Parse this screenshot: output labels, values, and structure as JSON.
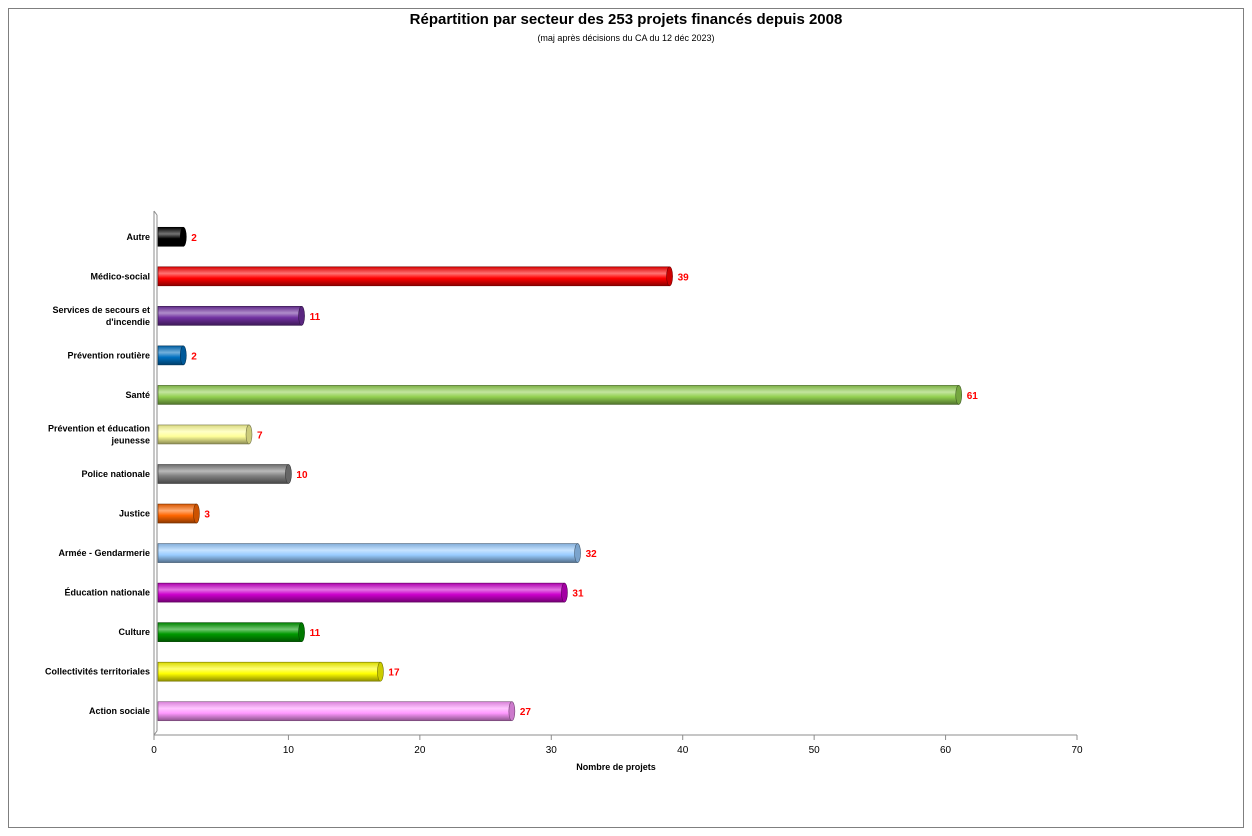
{
  "chart_data": {
    "type": "bar",
    "orientation": "horizontal",
    "title": "Répartition par secteur des 253 projets financés depuis 2008",
    "subtitle": "(maj après décisions du CA du 12 déc 2023)",
    "xlabel": "Nombre de projets",
    "ylabel": "",
    "xlim": [
      0,
      70
    ],
    "xticks": [
      "0",
      "10",
      "20",
      "30",
      "40",
      "50",
      "60",
      "70"
    ],
    "grid": false,
    "legend": "none",
    "value_label_color": "#ff0000",
    "categories": [
      {
        "label": [
          "Autre"
        ],
        "value": 2,
        "color": "#000000"
      },
      {
        "label": [
          "Médico-social"
        ],
        "value": 39,
        "color": "#ff0000"
      },
      {
        "label": [
          "Services de secours et",
          "d'incendie"
        ],
        "value": 11,
        "color": "#7030a0"
      },
      {
        "label": [
          "Prévention routière"
        ],
        "value": 2,
        "color": "#0070c0"
      },
      {
        "label": [
          "Santé"
        ],
        "value": 61,
        "color": "#92d050"
      },
      {
        "label": [
          "Prévention et éducation",
          "jeunesse"
        ],
        "value": 7,
        "color": "#ffff99"
      },
      {
        "label": [
          "Police nationale"
        ],
        "value": 10,
        "color": "#808080"
      },
      {
        "label": [
          "Justice"
        ],
        "value": 3,
        "color": "#ff6600"
      },
      {
        "label": [
          "Armée - Gendarmerie"
        ],
        "value": 32,
        "color": "#99ccff"
      },
      {
        "label": [
          "Éducation nationale"
        ],
        "value": 31,
        "color": "#cc00cc"
      },
      {
        "label": [
          "Culture"
        ],
        "value": 11,
        "color": "#009900"
      },
      {
        "label": [
          "Collectivités territoriales"
        ],
        "value": 17,
        "color": "#ffff00"
      },
      {
        "label": [
          "Action sociale"
        ],
        "value": 27,
        "color": "#ff99ff"
      }
    ]
  }
}
